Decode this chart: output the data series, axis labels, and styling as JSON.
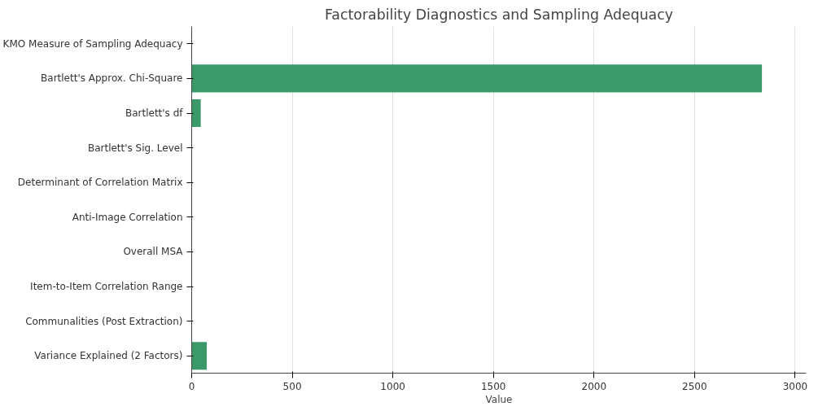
{
  "chart_data": {
    "type": "bar",
    "orientation": "horizontal",
    "title": "Factorability Diagnostics and Sampling Adequacy",
    "xlabel": "Value",
    "categories": [
      "KMO Measure of Sampling Adequacy",
      "Bartlett's Approx. Chi-Square",
      "Bartlett's df",
      "Bartlett's Sig. Level",
      "Determinant of Correlation Matrix",
      "Anti-Image Correlation",
      "Overall MSA",
      "Item-to-Item Correlation Range",
      "Communalities (Post Extraction)",
      "Variance Explained (2 Factors)"
    ],
    "values": [
      0,
      2835,
      45,
      0,
      0,
      0,
      0,
      0,
      0,
      75
    ],
    "color": "#3c9a6a",
    "xlim": [
      0,
      3055
    ],
    "xticks": [
      0,
      500,
      1000,
      1500,
      2000,
      2500,
      3000
    ],
    "grid": "x"
  }
}
